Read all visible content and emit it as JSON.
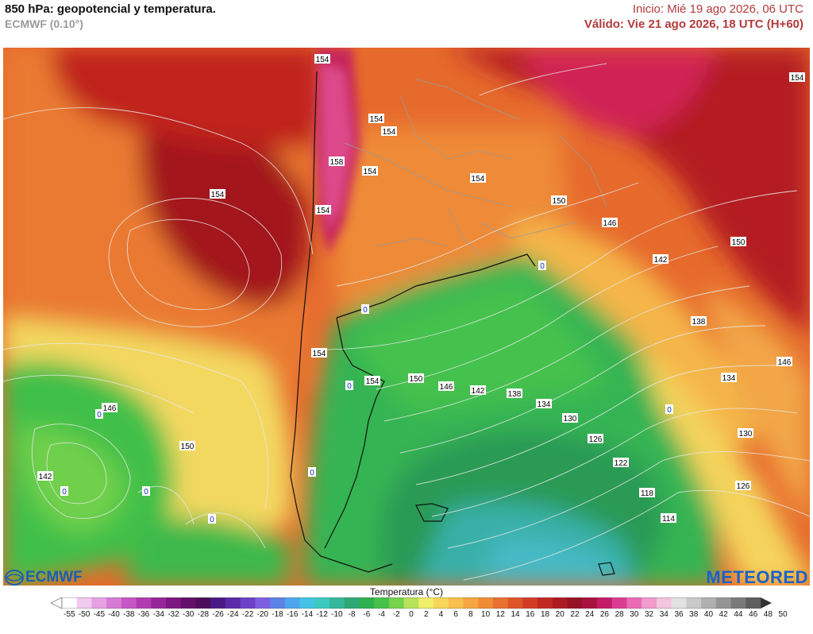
{
  "header": {
    "title": "850 hPa: geopotencial y temperatura.",
    "model": "ECMWF (0.10°)",
    "init": "Inicio: Mié 19 ago 2026, 06 UTC",
    "valid": "Válido: Vie 21 ago 2026, 18 UTC (H+60)"
  },
  "logos": {
    "left": "ECMWF",
    "right": "METEORED"
  },
  "legend": {
    "title": "Temperatura (°C)",
    "ticks": [
      "-55",
      "-50",
      "-45",
      "-40",
      "-38",
      "-36",
      "-34",
      "-32",
      "-30",
      "-28",
      "-26",
      "-24",
      "-22",
      "-20",
      "-18",
      "-16",
      "-14",
      "-12",
      "-10",
      "-8",
      "-6",
      "-4",
      "-2",
      "0",
      "2",
      "4",
      "6",
      "8",
      "10",
      "12",
      "14",
      "16",
      "18",
      "20",
      "22",
      "24",
      "26",
      "28",
      "30",
      "32",
      "34",
      "36",
      "38",
      "40",
      "42",
      "44",
      "46",
      "48",
      "50"
    ],
    "colors": [
      "#ffffff",
      "#f2c9ef",
      "#e6a0e3",
      "#d77ad6",
      "#c657c6",
      "#b13ab1",
      "#972599",
      "#7d1781",
      "#64106a",
      "#4e0d5a",
      "#4a1a86",
      "#5b2aa8",
      "#6d42c8",
      "#7e5ee0",
      "#5b82e6",
      "#4ea6ee",
      "#45c3e6",
      "#3cc9c0",
      "#34b79a",
      "#2ea875",
      "#2db04e",
      "#45c24a",
      "#77d24c",
      "#b8e25a",
      "#f1ee6a",
      "#f8d65a",
      "#f8c04c",
      "#f5a640",
      "#f08c36",
      "#e9702e",
      "#df5528",
      "#d23c25",
      "#c22822",
      "#ad1b22",
      "#951324",
      "#a8123e",
      "#c41a6a",
      "#dc3d92",
      "#e96bb4",
      "#f09ccd",
      "#f3c4de",
      "#e2e2e2",
      "#c9c9c9",
      "#b0b0b0",
      "#959595",
      "#7a7a7a",
      "#5e5e5e"
    ]
  },
  "map": {
    "contour_labels": [
      "154",
      "154",
      "154",
      "154",
      "154",
      "158",
      "154",
      "154",
      "154",
      "150",
      "146",
      "142",
      "150",
      "138",
      "146",
      "134",
      "154",
      "154",
      "150",
      "146",
      "142",
      "138",
      "134",
      "130",
      "126",
      "122",
      "118",
      "114",
      "130",
      "126",
      "146",
      "150",
      "142"
    ],
    "zero_labels": [
      "0",
      "0",
      "0",
      "0",
      "0",
      "0",
      "0",
      "0",
      "0"
    ]
  }
}
